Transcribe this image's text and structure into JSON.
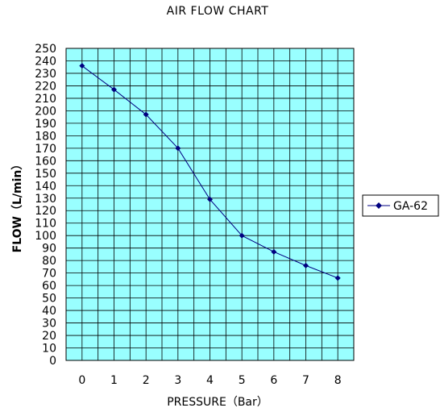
{
  "chart_data": {
    "type": "line",
    "title": "AIR FLOW CHART",
    "xlabel": "PRESSURE（Bar）",
    "ylabel": "FLOW（L/min）",
    "x": [
      0,
      1,
      2,
      3,
      4,
      5,
      6,
      7,
      8
    ],
    "xlim": [
      -0.5,
      8.5
    ],
    "ylim": [
      0,
      250
    ],
    "ytick_step": 10,
    "grid": true,
    "legend_position": "right",
    "series": [
      {
        "name": "GA-62",
        "values": [
          236,
          217,
          197,
          170,
          129,
          100,
          87,
          76,
          66
        ],
        "color": "#000080"
      }
    ],
    "plot_background": "#99ffff",
    "gridline_color": "#000000"
  }
}
